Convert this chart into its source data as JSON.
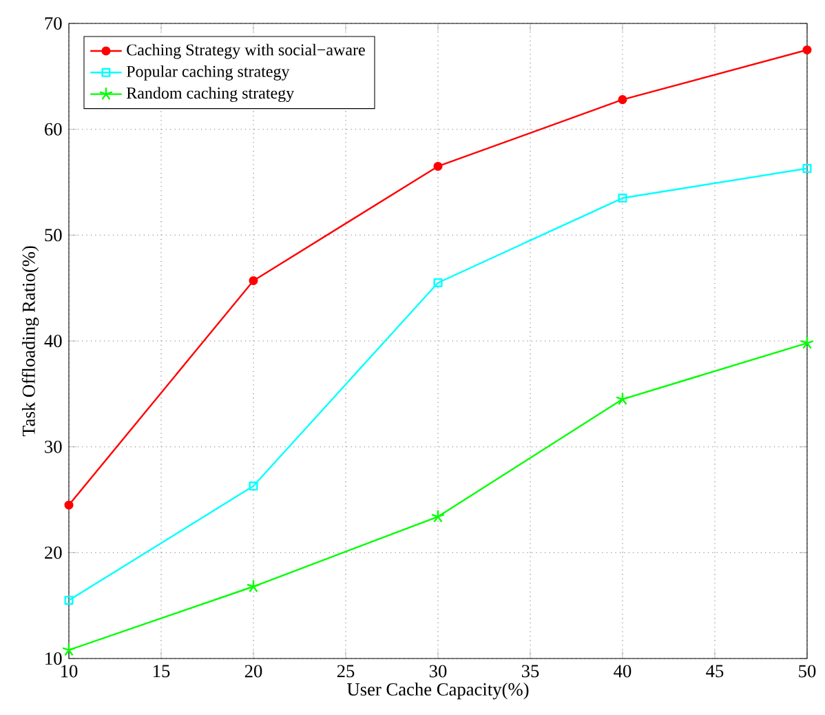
{
  "chart_data": {
    "type": "line",
    "xlabel": "User Cache Capacity(%)",
    "ylabel": "Task Offloading Ratio(%)",
    "x": [
      10,
      20,
      30,
      40,
      50
    ],
    "series": [
      {
        "name": "Caching Strategy with social−aware",
        "color": "#ff0000",
        "marker": "circle",
        "values": [
          24.5,
          45.7,
          56.5,
          62.8,
          67.5
        ]
      },
      {
        "name": "Popular caching strategy",
        "color": "#00ffff",
        "marker": "square",
        "values": [
          15.5,
          26.3,
          45.5,
          53.5,
          56.3
        ]
      },
      {
        "name": "Random caching strategy",
        "color": "#00ff00",
        "marker": "cross",
        "values": [
          10.8,
          16.8,
          23.4,
          34.5,
          39.8
        ]
      }
    ],
    "xlim": [
      10,
      50
    ],
    "ylim": [
      10,
      70
    ],
    "xticks": [
      10,
      15,
      20,
      25,
      30,
      35,
      40,
      45,
      50
    ],
    "yticks": [
      10,
      20,
      30,
      40,
      50,
      60,
      70
    ],
    "grid": true,
    "legend": "top left",
    "line_style": "solid"
  }
}
